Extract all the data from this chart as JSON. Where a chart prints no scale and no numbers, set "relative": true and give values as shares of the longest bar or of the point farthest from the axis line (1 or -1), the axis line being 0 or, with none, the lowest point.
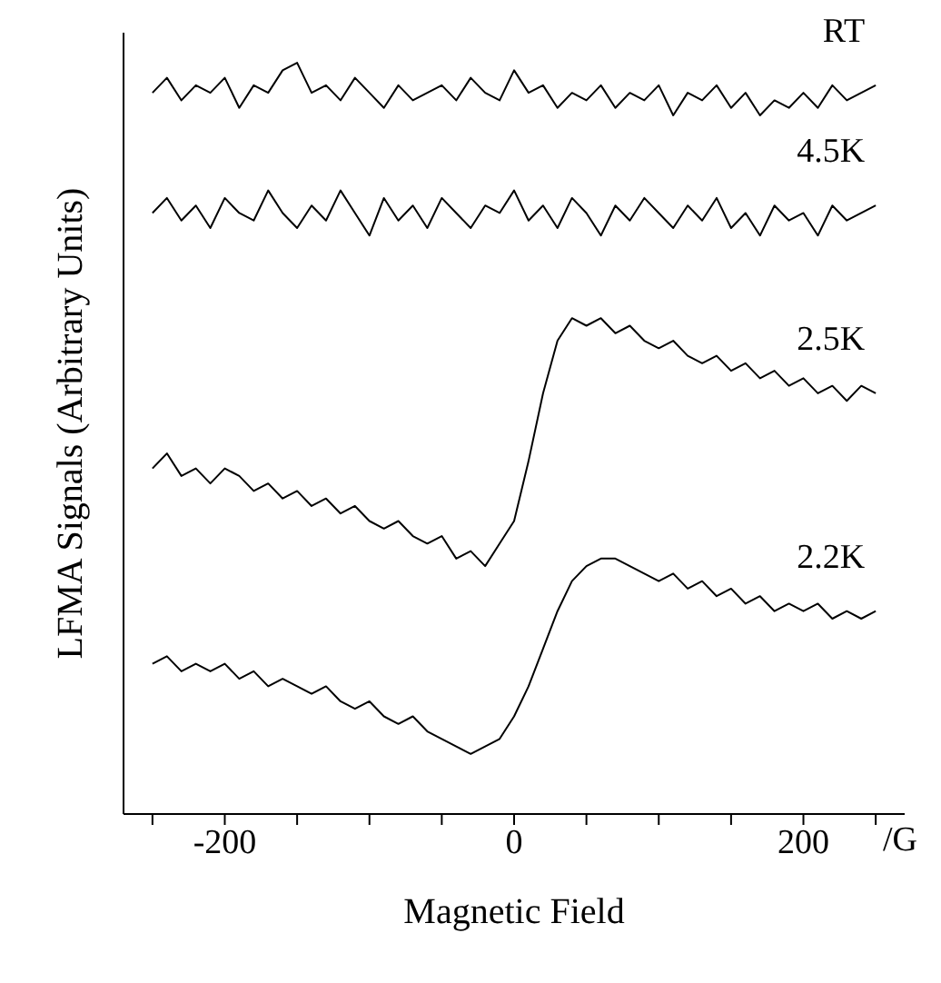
{
  "chart_data": {
    "type": "line",
    "relative": true,
    "xlabel": "Magnetic Field",
    "ylabel": "LFMA Signals (Arbitrary Units)",
    "annotations": [
      "/G"
    ],
    "grid": false,
    "legend": false,
    "marker": "none",
    "line_style": "solid",
    "xlim": [
      -270,
      270
    ],
    "xticks": [
      {
        "value": -250,
        "label": null
      },
      -200,
      {
        "value": -150,
        "label": null
      },
      {
        "value": -100,
        "label": null
      },
      {
        "value": -50,
        "label": null
      },
      0,
      {
        "value": 50,
        "label": null
      },
      {
        "value": 100,
        "label": null
      },
      {
        "value": 150,
        "label": null
      },
      200,
      {
        "value": 250,
        "label": null
      }
    ],
    "x": [
      -250,
      -240,
      -230,
      -220,
      -210,
      -200,
      -190,
      -180,
      -170,
      -160,
      -150,
      -140,
      -130,
      -120,
      -110,
      -100,
      -90,
      -80,
      -70,
      -60,
      -50,
      -40,
      -30,
      -20,
      -10,
      0,
      10,
      20,
      30,
      40,
      50,
      60,
      70,
      80,
      90,
      100,
      110,
      120,
      130,
      140,
      150,
      160,
      170,
      180,
      190,
      200,
      210,
      220,
      230,
      240,
      250
    ],
    "series": [
      {
        "name": "RT",
        "color": "#000000",
        "values": [
          0.96,
          0.98,
          0.95,
          0.97,
          0.96,
          0.98,
          0.94,
          0.97,
          0.96,
          0.99,
          1.0,
          0.96,
          0.97,
          0.95,
          0.98,
          0.96,
          0.94,
          0.97,
          0.95,
          0.96,
          0.97,
          0.95,
          0.98,
          0.96,
          0.95,
          0.99,
          0.96,
          0.97,
          0.94,
          0.96,
          0.95,
          0.97,
          0.94,
          0.96,
          0.95,
          0.97,
          0.93,
          0.96,
          0.95,
          0.97,
          0.94,
          0.96,
          0.93,
          0.95,
          0.94,
          0.96,
          0.94,
          0.97,
          0.95,
          0.96,
          0.97
        ]
      },
      {
        "name": "4.5K",
        "color": "#000000",
        "values": [
          0.8,
          0.82,
          0.79,
          0.81,
          0.78,
          0.82,
          0.8,
          0.79,
          0.83,
          0.8,
          0.78,
          0.81,
          0.79,
          0.83,
          0.8,
          0.77,
          0.82,
          0.79,
          0.81,
          0.78,
          0.82,
          0.8,
          0.78,
          0.81,
          0.8,
          0.83,
          0.79,
          0.81,
          0.78,
          0.82,
          0.8,
          0.77,
          0.81,
          0.79,
          0.82,
          0.8,
          0.78,
          0.81,
          0.79,
          0.82,
          0.78,
          0.8,
          0.77,
          0.81,
          0.79,
          0.8,
          0.77,
          0.81,
          0.79,
          0.8,
          0.81
        ]
      },
      {
        "name": "2.5K",
        "color": "#000000",
        "values": [
          0.46,
          0.48,
          0.45,
          0.46,
          0.44,
          0.46,
          0.45,
          0.43,
          0.44,
          0.42,
          0.43,
          0.41,
          0.42,
          0.4,
          0.41,
          0.39,
          0.38,
          0.39,
          0.37,
          0.36,
          0.37,
          0.34,
          0.35,
          0.33,
          0.36,
          0.39,
          0.47,
          0.56,
          0.63,
          0.66,
          0.65,
          0.66,
          0.64,
          0.65,
          0.63,
          0.62,
          0.63,
          0.61,
          0.6,
          0.61,
          0.59,
          0.6,
          0.58,
          0.59,
          0.57,
          0.58,
          0.56,
          0.57,
          0.55,
          0.57,
          0.56
        ]
      },
      {
        "name": "2.2K",
        "color": "#000000",
        "values": [
          0.2,
          0.21,
          0.19,
          0.2,
          0.19,
          0.2,
          0.18,
          0.19,
          0.17,
          0.18,
          0.17,
          0.16,
          0.17,
          0.15,
          0.14,
          0.15,
          0.13,
          0.12,
          0.13,
          0.11,
          0.1,
          0.09,
          0.08,
          0.09,
          0.1,
          0.13,
          0.17,
          0.22,
          0.27,
          0.31,
          0.33,
          0.34,
          0.34,
          0.33,
          0.32,
          0.31,
          0.32,
          0.3,
          0.31,
          0.29,
          0.3,
          0.28,
          0.29,
          0.27,
          0.28,
          0.27,
          0.28,
          0.26,
          0.27,
          0.26,
          0.27
        ]
      }
    ]
  }
}
